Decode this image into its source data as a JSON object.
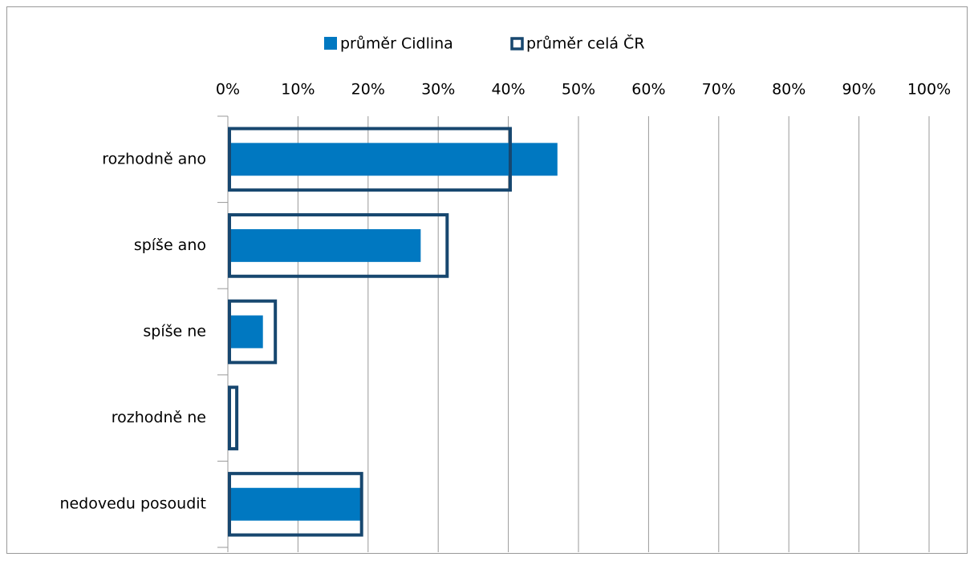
{
  "chart_data": {
    "type": "bar",
    "orientation": "horizontal",
    "categories": [
      "rozhodně ano",
      "spíše ano",
      "spíše ne",
      "rozhodně ne",
      "nedovedu posoudit"
    ],
    "series": [
      {
        "name": "průměr Cidlina",
        "color": "#0078c1",
        "style": "filled",
        "values": [
          47,
          27.5,
          5,
          0,
          19
        ]
      },
      {
        "name": "průměr celá ČR",
        "color": "#17476f",
        "style": "outline",
        "values": [
          40.5,
          31.5,
          7,
          1.5,
          19.3
        ]
      }
    ],
    "xlim": [
      0,
      100
    ],
    "xticks": [
      {
        "value": 0,
        "label": "0%"
      },
      {
        "value": 10,
        "label": "10%"
      },
      {
        "value": 20,
        "label": "20%"
      },
      {
        "value": 30,
        "label": "30%"
      },
      {
        "value": 40,
        "label": "40%"
      },
      {
        "value": 50,
        "label": "50%"
      },
      {
        "value": 60,
        "label": "60%"
      },
      {
        "value": 70,
        "label": "70%"
      },
      {
        "value": 80,
        "label": "80%"
      },
      {
        "value": 90,
        "label": "90%"
      },
      {
        "value": 100,
        "label": "100%"
      }
    ],
    "grid": true,
    "legend": "top"
  }
}
